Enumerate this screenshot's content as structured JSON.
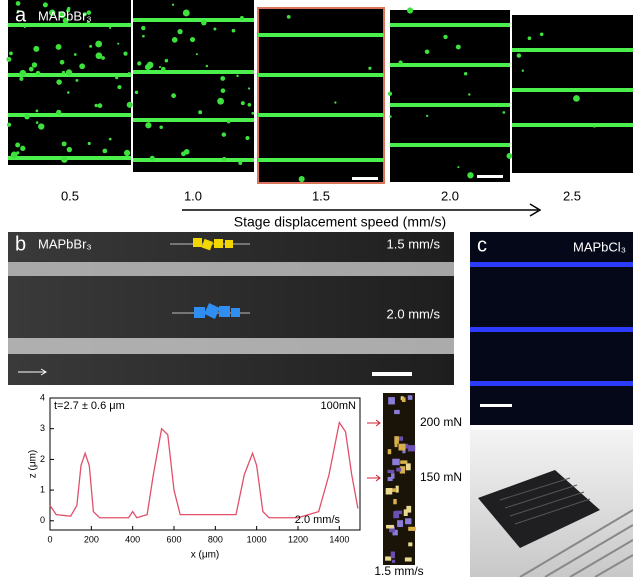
{
  "panel_a": {
    "label": "a",
    "material": "MAPbBr₃",
    "speeds": [
      "0.5",
      "1.0",
      "1.5",
      "2.0",
      "2.5"
    ],
    "axis_label": "Stage displacement speed (mm/s)"
  },
  "panel_b": {
    "label": "b",
    "material": "MAPbBr₃",
    "speed_top": "1.5 mm/s",
    "speed_bottom": "2.0 mm/s"
  },
  "side_image": {
    "labels": [
      "200 mN",
      "150 mN"
    ],
    "speed": "1.5 mm/s"
  },
  "panel_c": {
    "label": "c",
    "material": "MAPbCl₃"
  },
  "chart_data": {
    "type": "line",
    "x_label": "x (μm)",
    "y_label": "z (μm)",
    "annotations": [
      "t=2.7 ± 0.6 μm",
      "100mN",
      "2.0 mm/s"
    ],
    "x": [
      0,
      30,
      100,
      130,
      150,
      170,
      190,
      210,
      240,
      380,
      400,
      420,
      470,
      500,
      540,
      570,
      600,
      630,
      900,
      940,
      980,
      1000,
      1030,
      1060,
      1200,
      1300,
      1350,
      1400,
      1430,
      1460,
      1490
    ],
    "series": [
      {
        "color": "#e0506a",
        "values": [
          0.5,
          0.2,
          0.15,
          0.5,
          1.8,
          2.2,
          1.8,
          0.3,
          0.1,
          0.1,
          0.3,
          0.1,
          0.2,
          1.5,
          3.0,
          2.8,
          1.0,
          0.2,
          0.2,
          1.5,
          2.2,
          1.8,
          0.3,
          0.1,
          0.1,
          0.3,
          1.5,
          3.2,
          2.9,
          1.5,
          0.4
        ]
      }
    ],
    "xlim": [
      0,
      1500
    ],
    "ylim": [
      -0.3,
      4
    ],
    "xticks": [
      0,
      200,
      400,
      600,
      800,
      1000,
      1200,
      1400
    ],
    "yticks": [
      0,
      1,
      2,
      3,
      4
    ]
  }
}
